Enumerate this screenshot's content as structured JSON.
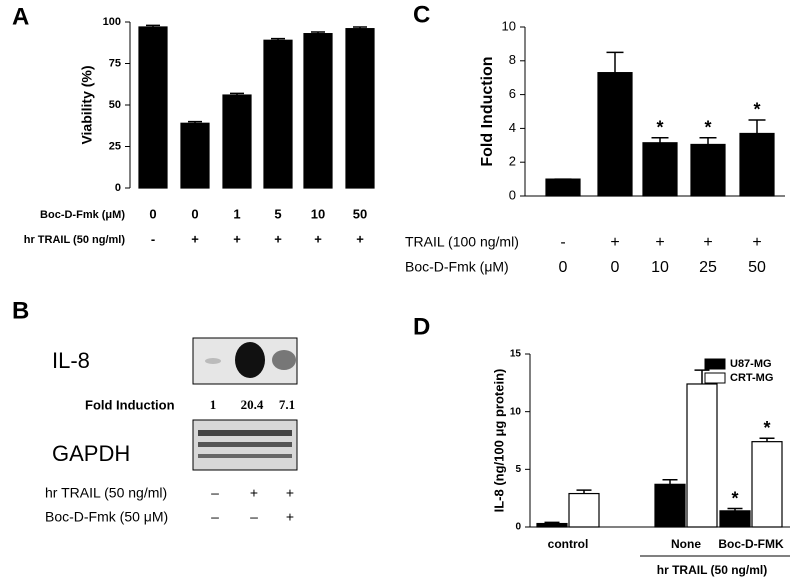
{
  "panels": {
    "A": "A",
    "B": "B",
    "C": "C",
    "D": "D"
  },
  "chart_data": [
    {
      "type": "bar",
      "y_label": "Viability (%)",
      "color": "#000000",
      "values": [
        97,
        39,
        56,
        89,
        93,
        96
      ],
      "errors": [
        1,
        1,
        1,
        1,
        1,
        1
      ],
      "ylim": [
        0,
        100
      ],
      "yticks": [
        0,
        25,
        50,
        75,
        100
      ],
      "condition_rows": [
        {
          "label": "Boc-D-Fmk (μM)",
          "values": [
            "0",
            "0",
            "1",
            "5",
            "10",
            "50"
          ]
        },
        {
          "label": "hr TRAIL (50 ng/ml)",
          "values": [
            "-",
            "+",
            "+",
            "+",
            "+",
            "+"
          ]
        }
      ]
    },
    {
      "type": "bar",
      "y_label": "Fold Induction",
      "color": "#000000",
      "values": [
        1,
        7.3,
        3.15,
        3.05,
        3.7
      ],
      "errors": [
        0,
        1.2,
        0.3,
        0.4,
        0.8
      ],
      "annotations": [
        null,
        null,
        "*",
        "*",
        "*"
      ],
      "ylim": [
        0,
        10
      ],
      "yticks": [
        0,
        2,
        4,
        6,
        8,
        10
      ],
      "condition_rows": [
        {
          "label": "TRAIL (100 ng/ml)",
          "values": [
            "-",
            "+",
            "+",
            "+",
            "+"
          ]
        },
        {
          "label": "Boc-D-Fmk (μM)",
          "values": [
            "0",
            "0",
            "10",
            "25",
            "50"
          ]
        }
      ]
    },
    {
      "type": "grouped-bar",
      "y_label": "IL-8 (ng/100 μg protein)",
      "x_label": "hr TRAIL (50 ng/ml)",
      "categories": [
        "control",
        "None",
        "Boc-D-FMK"
      ],
      "series": [
        {
          "name": "U87-MG",
          "color": "#000000",
          "values": [
            0.3,
            3.7,
            1.4
          ],
          "errors": [
            0.1,
            0.4,
            0.2
          ],
          "annotations": [
            null,
            null,
            "*"
          ]
        },
        {
          "name": "CRT-MG",
          "color": "#ffffff",
          "values": [
            2.9,
            12.4,
            7.4
          ],
          "errors": [
            0.3,
            1.2,
            0.3
          ],
          "annotations": [
            null,
            null,
            "*"
          ]
        }
      ],
      "ylim": [
        0,
        15
      ],
      "yticks": [
        0,
        5,
        10,
        15
      ],
      "legend": "top-right"
    }
  ],
  "blot": {
    "band_label": "IL-8",
    "fold_label": "Fold Induction",
    "fold_values": [
      1,
      20.4,
      7.1
    ],
    "control_label": "GAPDH",
    "condition_rows": [
      {
        "label": "hr TRAIL (50 ng/ml)",
        "values": [
          "–",
          "+",
          "+"
        ]
      },
      {
        "label": "Boc-D-Fmk (50 μM)",
        "values": [
          "–",
          "–",
          "+"
        ]
      }
    ]
  }
}
